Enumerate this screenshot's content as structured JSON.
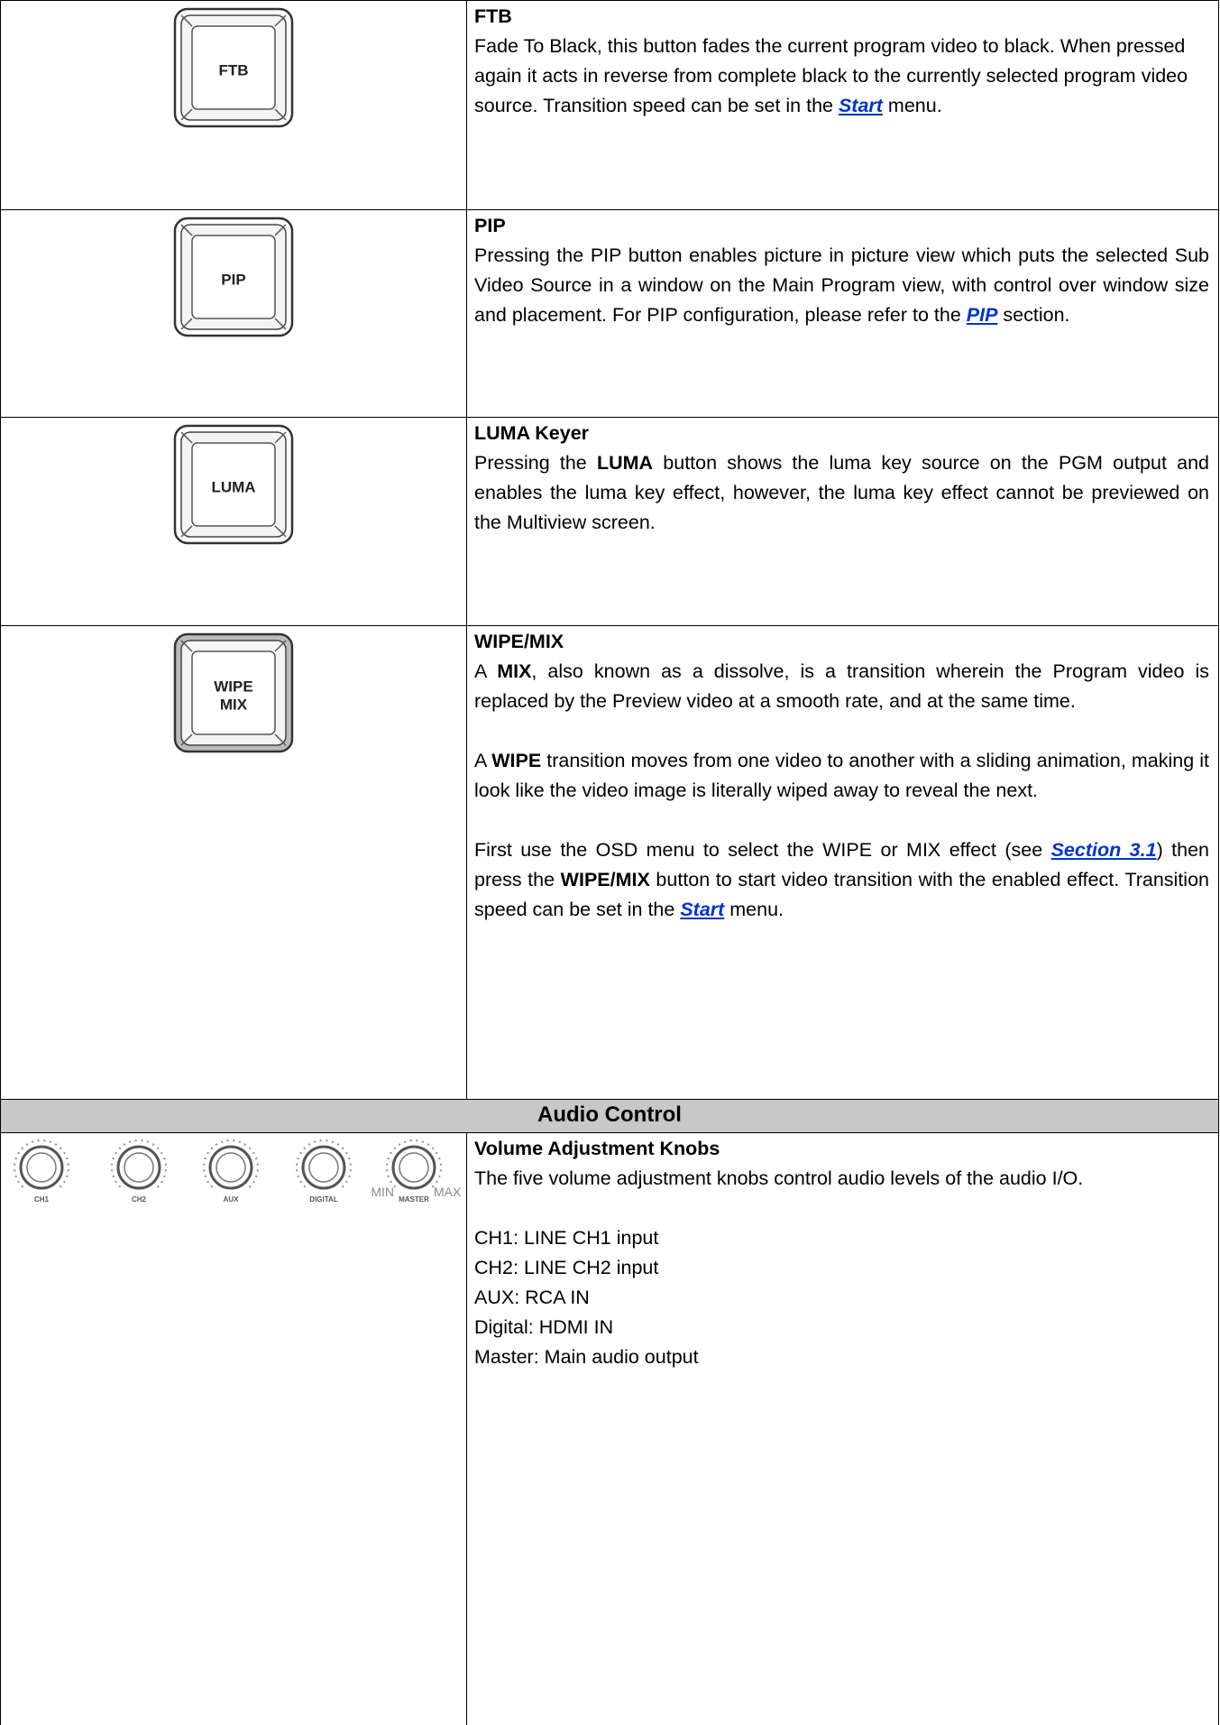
{
  "rows": [
    {
      "button": [
        "FTB"
      ],
      "title": "FTB",
      "justify": false,
      "paragraphs": [
        [
          {
            "text": "Fade To Black, this button fades the current program video to black. When pressed again it acts in reverse from complete black to the currently selected program video source. Transition speed can be set in the "
          },
          {
            "text": "Start",
            "link": true
          },
          {
            "text": " menu."
          }
        ]
      ]
    },
    {
      "button": [
        "PIP"
      ],
      "title": "PIP",
      "justify": true,
      "paragraphs": [
        [
          {
            "text": "Pressing the PIP button enables picture in picture view which puts the selected Sub Video Source in a window on the Main Program view, with control over window size and placement. For PIP configuration, please refer to the "
          },
          {
            "text": "PIP",
            "link": true
          },
          {
            "text": " section."
          }
        ]
      ]
    },
    {
      "button": [
        "LUMA"
      ],
      "title": "LUMA Keyer",
      "justify": true,
      "paragraphs": [
        [
          {
            "text": "Pressing the "
          },
          {
            "text": "LUMA",
            "bold": true
          },
          {
            "text": " button shows the luma key source on the PGM output and enables the luma key effect, however, the luma key effect cannot be previewed on the Multiview screen."
          }
        ]
      ]
    },
    {
      "button": [
        "WIPE",
        "MIX"
      ],
      "title": "WIPE/MIX",
      "justify": true,
      "paragraphs": [
        [
          {
            "text": "A "
          },
          {
            "text": "MIX",
            "bold": true
          },
          {
            "text": ", also known as a dissolve, is a transition wherein the Program video is replaced by the Preview video at a smooth rate, and at the same time."
          }
        ],
        [
          {
            "text": "A "
          },
          {
            "text": "WIPE",
            "bold": true
          },
          {
            "text": " transition moves from one video to another with a sliding animation, making it look like the video image is literally wiped away to reveal the next."
          }
        ],
        [
          {
            "text": "First use the OSD menu to select the WIPE or MIX effect (see "
          },
          {
            "text": "Section 3.1",
            "link": true
          },
          {
            "text": ") then press the "
          },
          {
            "text": "WIPE/MIX",
            "bold": true
          },
          {
            "text": " button to start video transition with the enabled effect. Transition speed can be set in the "
          },
          {
            "text": "Start",
            "link": true
          },
          {
            "text": " menu."
          }
        ]
      ]
    }
  ],
  "section": "Audio Control",
  "audio": {
    "knobs": [
      "CH1",
      "CH2",
      "AUX",
      "DIGITAL",
      "MASTER"
    ],
    "min": "MIN",
    "max": "MAX",
    "title": "Volume Adjustment Knobs",
    "intro": "The five volume adjustment knobs control audio levels of the audio I/O.",
    "list": [
      "CH1: LINE CH1 input",
      "CH2: LINE CH2 input",
      "AUX: RCA IN",
      "Digital: HDMI IN",
      "Master: Main audio output"
    ]
  }
}
